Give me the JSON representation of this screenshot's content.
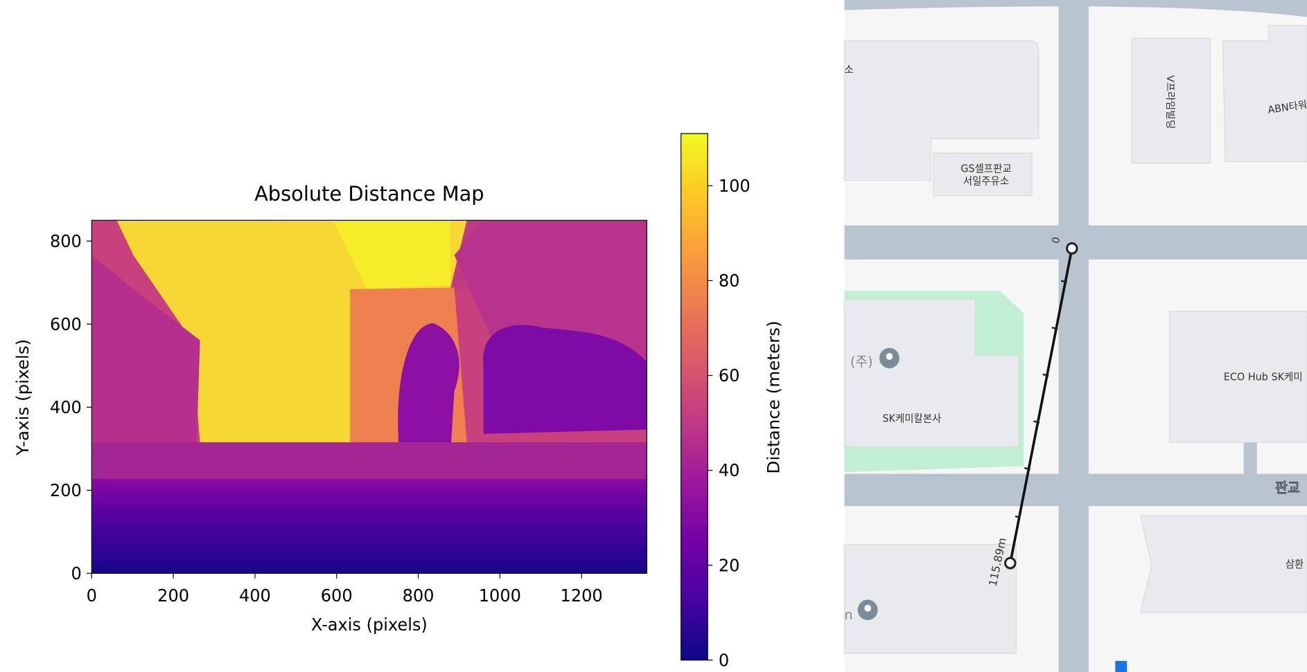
{
  "chart_data": {
    "type": "heatmap",
    "title": "Absolute Distance Map",
    "x_label": "X-axis (pixels)",
    "y_label": "Y-axis (pixels)",
    "xlim": [
      0,
      1360
    ],
    "xticks": [
      0,
      200,
      400,
      600,
      800,
      1000,
      1200
    ],
    "ylim": [
      0,
      850
    ],
    "yticks": [
      0,
      200,
      400,
      600,
      800
    ],
    "colorbar": {
      "label": "Distance (meters)",
      "lim": [
        0,
        111
      ],
      "ticks": [
        0,
        20,
        40,
        60,
        80,
        100
      ],
      "colors": [
        "#0d0887",
        "#46039f",
        "#7201a8",
        "#9c179e",
        "#bd3786",
        "#d8576b",
        "#ed7953",
        "#fb9f3a",
        "#fdca26",
        "#f0f921"
      ]
    }
  },
  "map": {
    "labels": [
      "소",
      "GS셀프판교",
      "서일주유소",
      "V프라임빌딩",
      "ABN타워",
      "(주)",
      "SK케미칼본사",
      "ECO Hub SK케미",
      "판교",
      "삼환",
      "n",
      "0"
    ],
    "measurement": "115.89m"
  }
}
